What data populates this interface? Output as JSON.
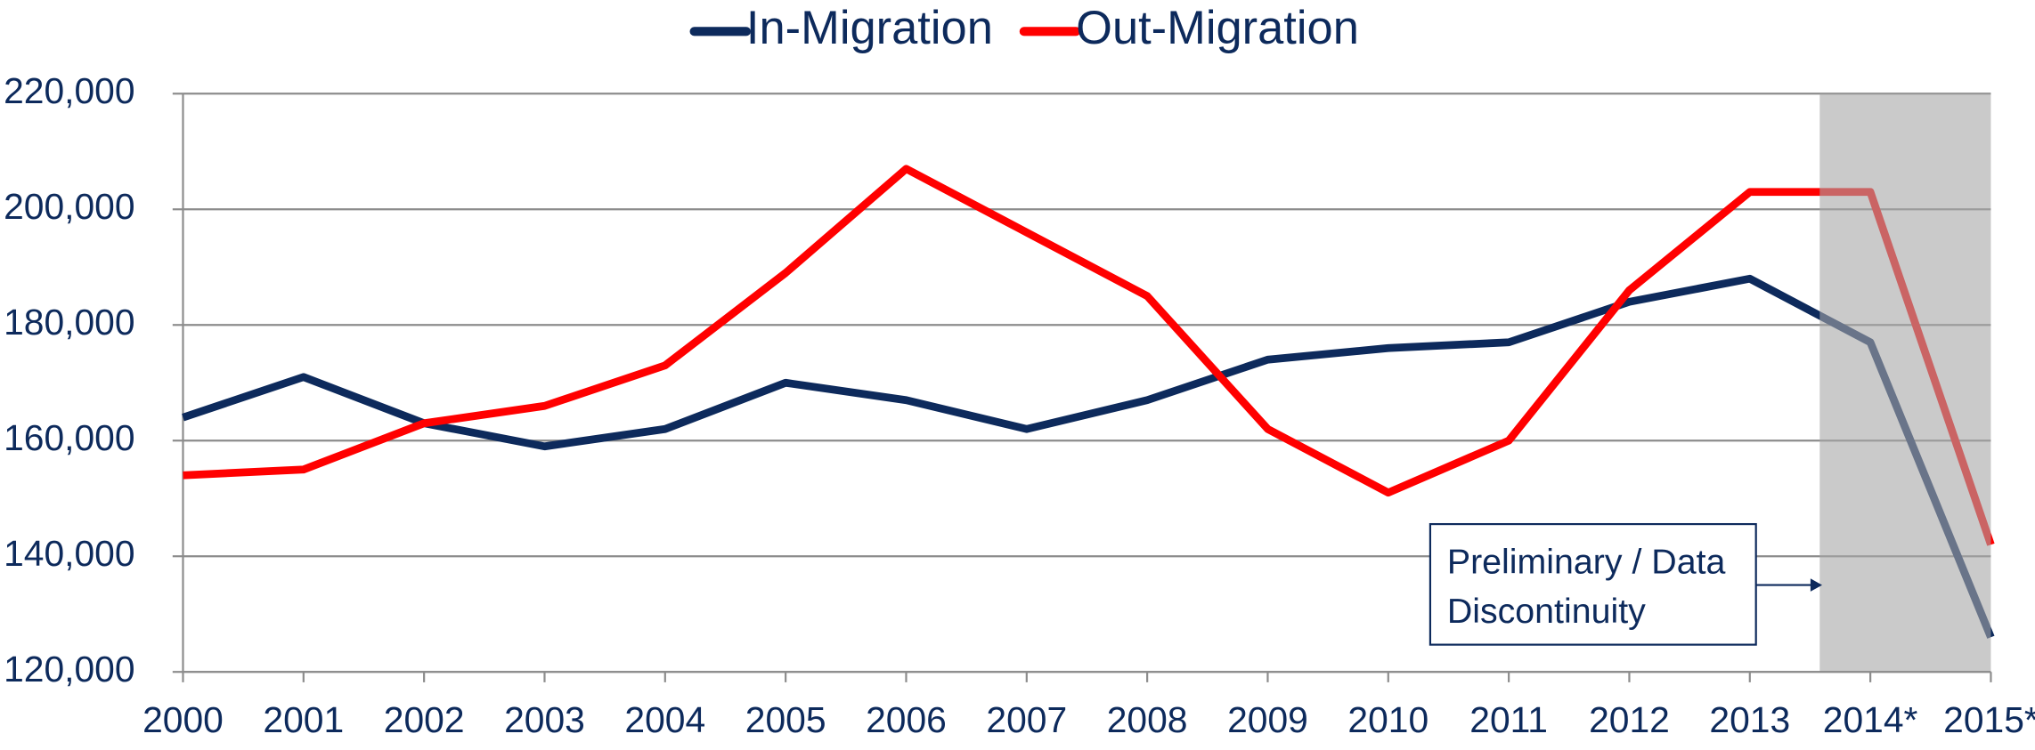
{
  "chart_data": {
    "type": "line",
    "categories": [
      "2000",
      "2001",
      "2002",
      "2003",
      "2004",
      "2005",
      "2006",
      "2007",
      "2008",
      "2009",
      "2010",
      "2011",
      "2012",
      "2013",
      "2014*",
      "2015*"
    ],
    "series": [
      {
        "name": "In-Migration",
        "color": "#0d2a5c",
        "values": [
          164000,
          171000,
          163000,
          159000,
          162000,
          170000,
          167000,
          162000,
          167000,
          174000,
          176000,
          177000,
          184000,
          188000,
          177000,
          126000
        ]
      },
      {
        "name": "Out-Migration",
        "color": "#ff0000",
        "values": [
          154000,
          155000,
          163000,
          166000,
          173000,
          189000,
          207000,
          196000,
          185000,
          162000,
          151000,
          160000,
          186000,
          203000,
          203000,
          142000
        ]
      }
    ],
    "ylim": [
      120000,
      220000
    ],
    "yticks": [
      {
        "value": 120000,
        "label": "120,000"
      },
      {
        "value": 140000,
        "label": "140,000"
      },
      {
        "value": 160000,
        "label": "160,000"
      },
      {
        "value": 180000,
        "label": "180,000"
      },
      {
        "value": 200000,
        "label": "200,000"
      },
      {
        "value": 220000,
        "label": "220,000"
      }
    ],
    "grid": true,
    "legend": "top",
    "annotation": [
      "Preliminary / Data",
      "Discontinuity"
    ]
  }
}
